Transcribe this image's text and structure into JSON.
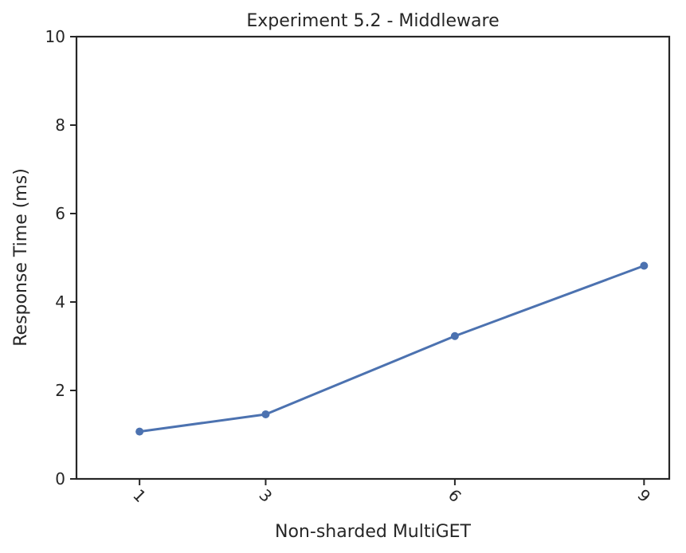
{
  "chart_data": {
    "type": "line",
    "title": "Experiment 5.2 - Middleware",
    "xlabel": "Non-sharded MultiGET",
    "ylabel": "Response Time (ms)",
    "x": [
      1,
      3,
      6,
      9
    ],
    "x_tick_labels": [
      "1",
      "3",
      "6",
      "9"
    ],
    "x_tick_rotation_deg": 45,
    "xlim": [
      0,
      9.4
    ],
    "ylim": [
      0,
      10
    ],
    "y_ticks": [
      0,
      2,
      4,
      6,
      8,
      10
    ],
    "y_tick_labels": [
      "0",
      "2",
      "4",
      "6",
      "8",
      "10"
    ],
    "grid": false,
    "series": [
      {
        "values": [
          1.07,
          1.46,
          3.23,
          4.82
        ],
        "color": "#4c72b0",
        "marker": "circle"
      }
    ]
  }
}
